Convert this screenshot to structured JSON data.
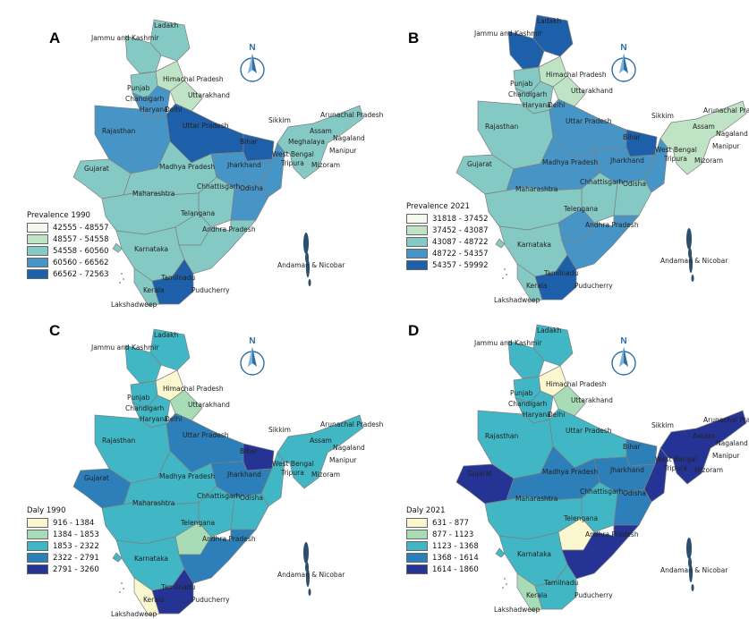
{
  "panels": [
    {
      "letter": "A",
      "legend": {
        "title": "Prevalence 1990",
        "items": [
          {
            "range": "42555 - 48557",
            "color": "#f4f9ee"
          },
          {
            "range": "48557 - 54558",
            "color": "#bfe3c5"
          },
          {
            "range": "54558 - 60560",
            "color": "#84c9c3"
          },
          {
            "range": "60560 - 66562",
            "color": "#4795c7"
          },
          {
            "range": "66562 - 72563",
            "color": "#1d5fa8"
          }
        ]
      },
      "compass": "N",
      "labels": {
        "ladakh": "Ladakh",
        "jk": "Jammu and Kashmir",
        "hp": "Himachal Pradesh",
        "punjab": "Punjab",
        "chandigarh": "Chandigarh",
        "uttarakhand": "Uttarakhand",
        "haryana": "Haryana",
        "delhi": "Delhi",
        "rajasthan": "Rajasthan",
        "up": "Uttar Pradesh",
        "sikkim": "Sikkim",
        "arunachal": "Arunachal Pradesh",
        "assam": "Assam",
        "bihar": "Bihar",
        "nagaland": "Nagaland",
        "meghalaya": "Meghalaya",
        "westbengal": "West Bengal",
        "manipur": "Manipur",
        "tripura": "Tripura",
        "mizoram": "Mizoram",
        "gujarat": "Gujarat",
        "mp": "Madhya Pradesh",
        "jharkhand": "Jharkhand",
        "chhattisgarh": "Chhattisgarh",
        "odisha": "Odisha",
        "maharashtra": "Maharashtra",
        "telangana": "Telangana",
        "ap": "Andhra Pradesh",
        "karnataka": "Karnataka",
        "andaman": "Andaman & Nicobar",
        "tamilnadu": "Tamilnadu",
        "puducherry": "Puducherry",
        "kerala": "Kerala",
        "lakshadweep": "Lakshadweep"
      }
    },
    {
      "letter": "B",
      "legend": {
        "title": "Prevalence 2021",
        "items": [
          {
            "range": "31818 - 37452",
            "color": "#f4f9ee"
          },
          {
            "range": "37452 - 43087",
            "color": "#bfe3c5"
          },
          {
            "range": "43087 - 48722",
            "color": "#84c9c3"
          },
          {
            "range": "48722 - 54357",
            "color": "#4795c7"
          },
          {
            "range": "54357 - 59992",
            "color": "#1d5fa8"
          }
        ]
      },
      "compass": "N",
      "labels": {
        "ladakh": "Ladakh",
        "jk": "Jammu and Kashmir",
        "hp": "Himachal Pradesh",
        "punjab": "Punjab",
        "chandigarh": "Chandigarh",
        "uttarakhand": "Uttarakhand",
        "haryana": "Haryana",
        "delhi": "Delhi",
        "rajasthan": "Rajasthan",
        "up": "Uttar Pradesh",
        "sikkim": "Sikkim",
        "arunachal": "Arunachal Pradesh",
        "assam": "Assam",
        "bihar": "Bihar",
        "nagaland": "Nagaland",
        "meghalaya": "",
        "westbengal": "West Bengal",
        "manipur": "Manipur",
        "tripura": "Tripura",
        "mizoram": "Mizoram",
        "gujarat": "Gujarat",
        "mp": "Madhya Pradesh",
        "jharkhand": "Jharkhand",
        "chhattisgarh": "Chhattisgarh",
        "odisha": "Odisha",
        "maharashtra": "Maharashtra",
        "telangana": "Telengana",
        "ap": "Andhra Pradesh",
        "karnataka": "Karnataka",
        "andaman": "Andaman & Nicobar",
        "tamilnadu": "Tamilnadu",
        "puducherry": "Puducherry",
        "kerala": "Kerala",
        "lakshadweep": "Lakshadweep"
      }
    },
    {
      "letter": "C",
      "legend": {
        "title": "Daly 1990",
        "items": [
          {
            "range": "916 - 1384",
            "color": "#fbf8cf"
          },
          {
            "range": "1384 - 1853",
            "color": "#a7dcb6"
          },
          {
            "range": "1853 - 2322",
            "color": "#41b6c4"
          },
          {
            "range": "2322 - 2791",
            "color": "#2c7fb8"
          },
          {
            "range": "2791 - 3260",
            "color": "#253494"
          }
        ]
      },
      "compass": "N",
      "labels": {
        "ladakh": "Ladakh",
        "jk": "Jammu and Kashmir",
        "hp": "Himachal Pradesh",
        "punjab": "Punjab",
        "chandigarh": "Chandigarh",
        "uttarakhand": "Uttarakhand",
        "haryana": "Haryana",
        "delhi": "Delhi",
        "rajasthan": "Rajasthan",
        "up": "Uttar Pradesh",
        "sikkim": "Sikkim",
        "arunachal": "Arunachal Pradesh",
        "assam": "Assam",
        "bihar": "Bihar",
        "nagaland": "Nagaland",
        "meghalaya": "",
        "westbengal": "West Bengal",
        "manipur": "Manipur",
        "tripura": "Tripura",
        "mizoram": "Mizoram",
        "gujarat": "Gujarat",
        "mp": "Madhya Pradesh",
        "jharkhand": "Jharkhand",
        "chhattisgarh": "Chhattisgarh",
        "odisha": "Odisha",
        "maharashtra": "Maharashtra",
        "telangana": "Telengana",
        "ap": "Andhra Pradesh",
        "karnataka": "Karnataka",
        "andaman": "Andaman & Nicobar",
        "tamilnadu": "Tamilnadu",
        "puducherry": "Puducherry",
        "kerala": "Kerala",
        "lakshadweep": "Lakshadweep"
      }
    },
    {
      "letter": "D",
      "legend": {
        "title": "Daly 2021",
        "items": [
          {
            "range": "631 - 877",
            "color": "#fbf8cf"
          },
          {
            "range": "877 - 1123",
            "color": "#a7dcb6"
          },
          {
            "range": "1123 - 1368",
            "color": "#41b6c4"
          },
          {
            "range": "1368 - 1614",
            "color": "#2c7fb8"
          },
          {
            "range": "1614 - 1860",
            "color": "#253494"
          }
        ]
      },
      "compass": "N",
      "labels": {
        "ladakh": "Ladakh",
        "jk": "Jammu and Kashmir",
        "hp": "Himachal Pradesh",
        "punjab": "Punjab",
        "chandigarh": "Chandigarh",
        "uttarakhand": "Uttarakhand",
        "haryana": "Haryana",
        "delhi": "Delhi",
        "rajasthan": "Rajasthan",
        "up": "Uttar Pradesh",
        "sikkim": "Sikkim",
        "arunachal": "Arunachal Pradesh",
        "assam": "Assam",
        "bihar": "Bihar",
        "nagaland": "Nagaland",
        "meghalaya": "",
        "westbengal": "West Bengal",
        "manipur": "Manipur",
        "tripura": "Tripura",
        "mizoram": "Mizoram",
        "gujarat": "Gujarat",
        "mp": "Madhya Pradesh",
        "jharkhand": "Jharkhand",
        "chhattisgarh": "Chhattisgarh",
        "odisha": "Odisha",
        "maharashtra": "Maharashtra",
        "telangana": "Telengana",
        "ap": "Andhra Pradesh",
        "karnataka": "Karnataka",
        "andaman": "Andaman & Nicobar",
        "tamilnadu": "Tamilnadu",
        "puducherry": "Puducherry",
        "kerala": "Kerala",
        "lakshadweep": "Lakshadweep"
      }
    }
  ],
  "state_classes": [
    {
      "jk": 2,
      "ladakh": 2,
      "hp": 1,
      "punjab": 2,
      "haryana": 3,
      "uttarakhand": 1,
      "rajasthan": 3,
      "up": 4,
      "bihar": 4,
      "gujarat": 2,
      "mp": 2,
      "jharkhand": 3,
      "chhattisgarh": 2,
      "odisha": 3,
      "westbengal": 3,
      "maharashtra": 2,
      "telangana": 2,
      "ap": 2,
      "karnataka": 2,
      "tamilnadu": 4,
      "kerala": 2,
      "ne": 2,
      "goa": 2
    },
    {
      "jk": 4,
      "ladakh": 4,
      "hp": 1,
      "punjab": 2,
      "haryana": 2,
      "uttarakhand": 1,
      "rajasthan": 2,
      "up": 3,
      "bihar": 4,
      "gujarat": 2,
      "mp": 3,
      "jharkhand": 3,
      "chhattisgarh": 2,
      "odisha": 2,
      "westbengal": 3,
      "maharashtra": 2,
      "telangana": 3,
      "ap": 3,
      "karnataka": 2,
      "tamilnadu": 4,
      "kerala": 2,
      "ne": 1,
      "goa": 2
    },
    {
      "jk": 2,
      "ladakh": 2,
      "hp": 0,
      "punjab": 2,
      "haryana": 2,
      "uttarakhand": 1,
      "rajasthan": 2,
      "up": 3,
      "bihar": 4,
      "gujarat": 3,
      "mp": 2,
      "jharkhand": 3,
      "chhattisgarh": 2,
      "odisha": 2,
      "westbengal": 2,
      "maharashtra": 2,
      "telangana": 1,
      "ap": 3,
      "karnataka": 2,
      "tamilnadu": 4,
      "kerala": 0,
      "ne": 2,
      "goa": 2
    },
    {
      "jk": 2,
      "ladakh": 2,
      "hp": 0,
      "punjab": 2,
      "haryana": 2,
      "uttarakhand": 1,
      "rajasthan": 2,
      "up": 2,
      "bihar": 3,
      "gujarat": 4,
      "mp": 3,
      "jharkhand": 3,
      "chhattisgarh": 2,
      "odisha": 3,
      "westbengal": 4,
      "maharashtra": 2,
      "telangana": 0,
      "ap": 4,
      "karnataka": 2,
      "tamilnadu": 2,
      "kerala": 1,
      "ne": 4,
      "goa": 2
    }
  ]
}
